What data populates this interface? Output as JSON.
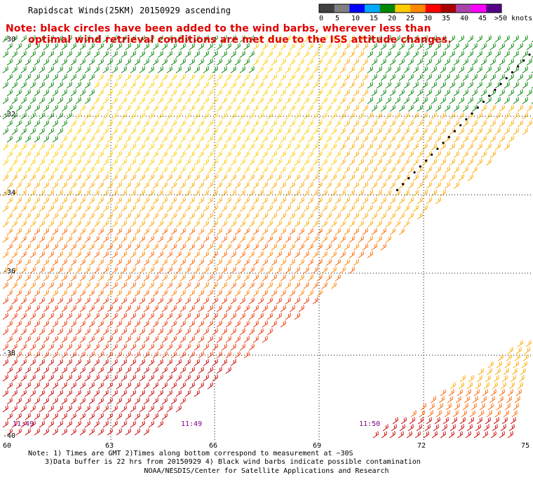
{
  "title": "Rapidscat Winds(25KM) 20150929 ascending",
  "note_line1": "Note: black circles have been added to the wind barbs, wherever less than",
  "note_line2": "optimal wind retrieval conditions are met due to the ISS attitude changes.",
  "color_scale": {
    "labels": [
      "0",
      "5",
      "10",
      "15",
      "20",
      "25",
      "30",
      "35",
      "40",
      "45",
      ">50 knots"
    ],
    "colors": [
      "#404040",
      "#808080",
      "#0000ff",
      "#00aaff",
      "#008800",
      "#ffcc00",
      "#ff8800",
      "#ff0000",
      "#aa0000",
      "#aa44aa",
      "#ff00ff",
      "#550088"
    ]
  },
  "lat_labels": [
    "-30",
    "-32",
    "-34",
    "-36",
    "-38",
    "-40"
  ],
  "lon_labels": [
    "60",
    "63",
    "66",
    "69",
    "72",
    "75"
  ],
  "time_labels": [
    "11:49",
    "11:49",
    "11:50"
  ],
  "footnote_line1": "Note: 1) Times are GMT 2)Times along bottom correspond to measurement at ~30S",
  "footnote_line2": "3)Data buffer is 22 hrs from 20150929 4) Black wind barbs indicate possible contamination",
  "credit": "NOAA/NESDIS/Center for Satellite Applications and Research"
}
